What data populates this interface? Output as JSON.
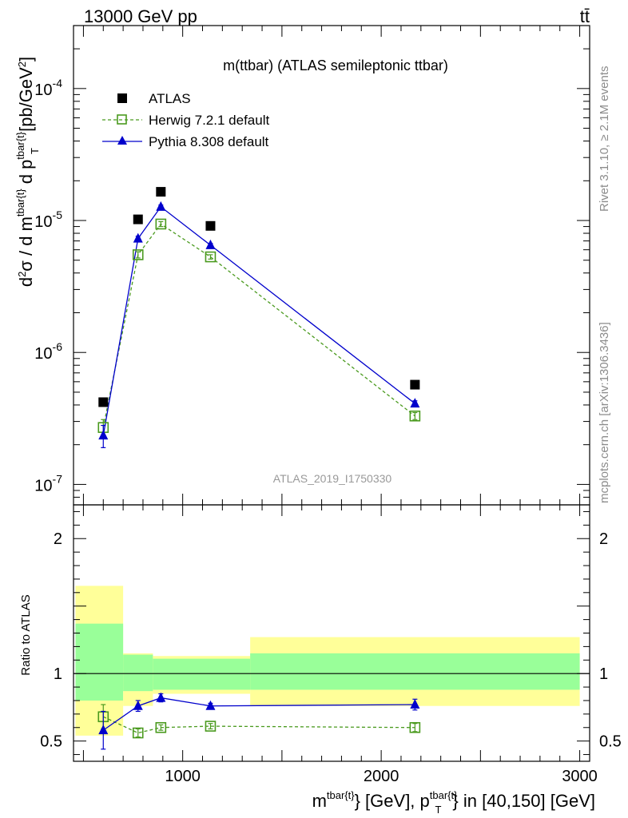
{
  "header": {
    "beam": "13000 GeV pp",
    "process": "tt̄"
  },
  "chart_data": [
    {
      "type": "scatter",
      "panel": "main",
      "title": "m(ttbar) (ATLAS semileptonic ttbar)",
      "analysis_id": "ATLAS_2019_I1750330",
      "ylabel": "d²σ / d m^{tbar{t}} d p_T^{tbar{t}} [pb/GeV²]",
      "yscale": "log",
      "ylim": [
        7e-08,
        0.0003
      ],
      "xlim": [
        450,
        3050
      ],
      "y_tick_labels": [
        "10^-7",
        "10^-6",
        "10^-5",
        "10^-4"
      ],
      "legend_position": "top-left",
      "series": [
        {
          "name": "ATLAS",
          "color": "#000000",
          "marker": "filled-square",
          "x": [
            600,
            775,
            890,
            1140,
            2170
          ],
          "y": [
            4.2e-07,
            1.02e-05,
            1.65e-05,
            9.1e-06,
            5.7e-07
          ]
        },
        {
          "name": "Herwig 7.2.1 default",
          "color": "#4a9a1e",
          "marker": "open-square",
          "line": "dashed",
          "x": [
            600,
            775,
            890,
            1140,
            2170
          ],
          "y": [
            2.7e-07,
            5.5e-06,
            9.4e-06,
            5.3e-06,
            3.3e-07
          ],
          "yerr": [
            4e-08,
            3e-07,
            4e-07,
            2e-07,
            2e-08
          ]
        },
        {
          "name": "Pythia 8.308 default",
          "color": "#0000cc",
          "marker": "filled-triangle",
          "line": "solid",
          "x": [
            600,
            775,
            890,
            1140,
            2170
          ],
          "y": [
            2.35e-07,
            7.3e-06,
            1.27e-05,
            6.5e-06,
            4.1e-07
          ],
          "yerr": [
            4.5e-08,
            3e-07,
            4e-07,
            2e-07,
            2e-08
          ]
        }
      ]
    },
    {
      "type": "scatter",
      "panel": "ratio",
      "ylabel": "Ratio to ATLAS",
      "xlabel": "m^{tbar{t}} [GeV], p_T^{tbar{t}} in [40,150] [GeV]",
      "ylim": [
        0.35,
        2.25
      ],
      "xlim": [
        450,
        3050
      ],
      "y_ticks": [
        0.5,
        1,
        2
      ],
      "x_ticks": [
        1000,
        2000,
        3000
      ],
      "bands": [
        {
          "x": [
            460,
            700
          ],
          "yellow": [
            0.54,
            1.65
          ],
          "green": [
            0.8,
            1.37
          ]
        },
        {
          "x": [
            700,
            850
          ],
          "yellow": [
            0.76,
            1.15
          ],
          "green": [
            0.87,
            1.14
          ]
        },
        {
          "x": [
            850,
            1340
          ],
          "yellow": [
            0.85,
            1.13
          ],
          "green": [
            0.88,
            1.11
          ]
        },
        {
          "x": [
            1340,
            3000
          ],
          "yellow": [
            0.76,
            1.27
          ],
          "green": [
            0.88,
            1.15
          ]
        }
      ],
      "series": [
        {
          "name": "Herwig 7.2.1 default",
          "color": "#4a9a1e",
          "x": [
            600,
            775,
            890,
            1140,
            2170
          ],
          "y": [
            0.68,
            0.56,
            0.6,
            0.61,
            0.6
          ],
          "yerr": [
            0.09,
            0.03,
            0.02,
            0.02,
            0.03
          ]
        },
        {
          "name": "Pythia 8.308 default",
          "color": "#0000cc",
          "x": [
            600,
            775,
            890,
            1140,
            2170
          ],
          "y": [
            0.58,
            0.76,
            0.82,
            0.76,
            0.77
          ],
          "yerr": [
            0.14,
            0.04,
            0.03,
            0.02,
            0.04
          ]
        }
      ]
    }
  ],
  "side_labels": {
    "rivet": "Rivet 3.1.10, ≥ 2.1M events",
    "mcplots": "mcplots.cern.ch [arXiv:1306.3436]"
  }
}
